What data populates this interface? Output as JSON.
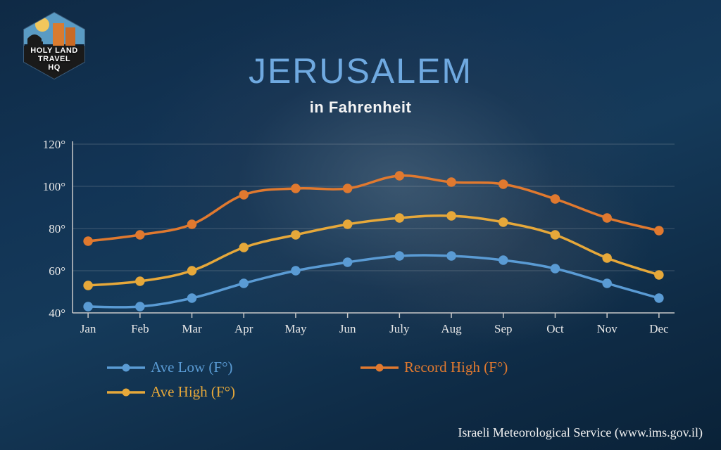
{
  "logo": {
    "lines": [
      "HOLY LAND",
      "TRAVEL",
      "HQ"
    ],
    "badge_fill": "#0c1a2a",
    "badge_stroke": "#3a5a78",
    "sun_fill": "#f2c75c",
    "sky_fill": "#5a9bc4",
    "mosque_fill": "#1a1a1a",
    "buildings_fill": "#d97b2f"
  },
  "title": {
    "text": "JERUSALEM",
    "color": "#6fa9e0",
    "fontsize": 50
  },
  "subtitle": {
    "text": "in Fahrenheit",
    "color": "#f5f5f5",
    "fontsize": 22
  },
  "attribution": {
    "text": "Israeli Meteorological Service (www.ims.gov.il)",
    "color": "#f2f2f2"
  },
  "chart": {
    "type": "line",
    "categories": [
      "Jan",
      "Feb",
      "Mar",
      "Apr",
      "May",
      "Jun",
      "July",
      "Aug",
      "Sep",
      "Oct",
      "Nov",
      "Dec"
    ],
    "ylim": [
      40,
      120
    ],
    "ytick_step": 20,
    "y_suffix": "°",
    "axis_color": "#c9c9c9",
    "grid_color": "rgba(200,200,200,0.25)",
    "label_fontsize": 17,
    "line_width": 3.5,
    "marker_radius": 5.5,
    "series": [
      {
        "key": "ave_low",
        "label": "Ave Low (F°)",
        "color": "#5a9bd4",
        "values": [
          43,
          43,
          47,
          54,
          60,
          64,
          67,
          67,
          65,
          61,
          54,
          47
        ]
      },
      {
        "key": "record_high",
        "label": "Record High (F°)",
        "color": "#e0792f",
        "values": [
          74,
          77,
          82,
          96,
          99,
          99,
          105,
          102,
          101,
          94,
          85,
          79
        ]
      },
      {
        "key": "ave_high",
        "label": "Ave High (F°)",
        "color": "#e6a83a",
        "values": [
          53,
          55,
          60,
          71,
          77,
          82,
          85,
          86,
          83,
          77,
          66,
          58
        ]
      }
    ],
    "legend_order": [
      "ave_low",
      "record_high",
      "ave_high"
    ],
    "legend_fontsize": 21
  }
}
